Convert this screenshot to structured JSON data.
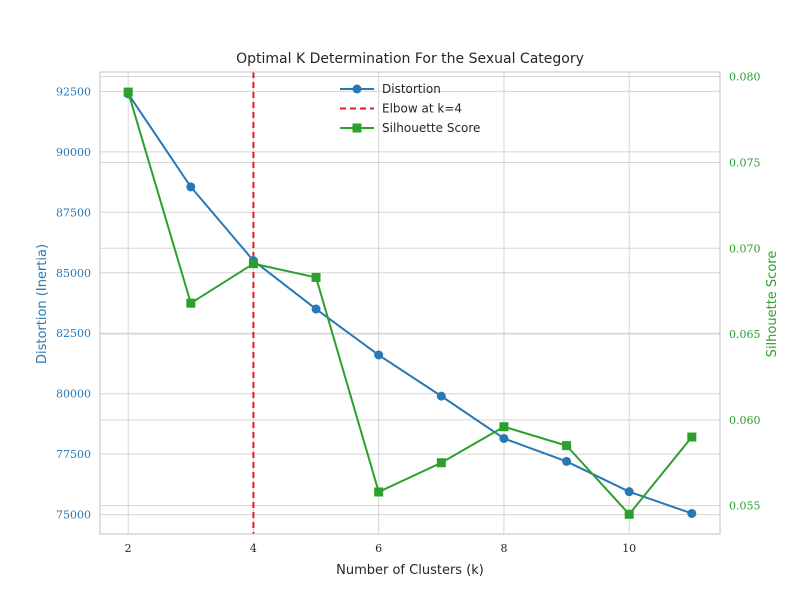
{
  "chart_data": {
    "type": "line",
    "title": "Optimal K Determination For the Sexual Category",
    "xlabel": "Number of Clusters (k)",
    "ylabel_left": "Distortion (Inertia)",
    "ylabel_right": "Silhouette Score",
    "x": [
      2,
      3,
      4,
      5,
      6,
      7,
      8,
      9,
      10,
      11
    ],
    "xlim": [
      1.55,
      11.45
    ],
    "xticks": [
      2,
      4,
      6,
      8,
      10
    ],
    "ylim_left": [
      74200,
      93300
    ],
    "yticks_left": [
      75000,
      77500,
      80000,
      82500,
      85000,
      87500,
      90000,
      92500
    ],
    "ylim_right": [
      0.05335,
      0.08027
    ],
    "yticks_right": [
      0.055,
      0.06,
      0.065,
      0.07,
      0.075,
      0.08
    ],
    "grid": true,
    "legend_position": "top-center",
    "series": [
      {
        "name": "Distortion",
        "axis": "left",
        "marker": "circle",
        "color": "#2878b5",
        "values": [
          92400,
          88550,
          85500,
          83500,
          81600,
          79900,
          78150,
          77200,
          75950,
          75050
        ]
      },
      {
        "name": "Silhouette Score",
        "axis": "right",
        "marker": "square",
        "color": "#2ca02c",
        "values": [
          0.0791,
          0.0668,
          0.0691,
          0.0683,
          0.0558,
          0.0575,
          0.0596,
          0.0585,
          0.0545,
          0.059
        ]
      }
    ],
    "annotations": [
      {
        "name": "Elbow at k=4",
        "type": "vline",
        "x": 4,
        "color": "#e31a1c",
        "style": "dashed"
      }
    ]
  }
}
